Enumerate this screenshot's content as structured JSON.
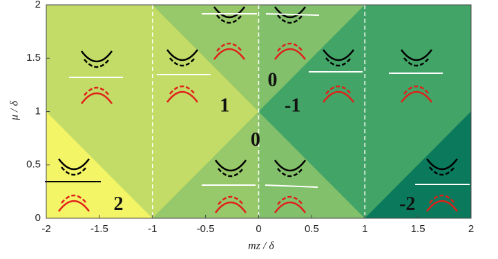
{
  "chart_data": {
    "type": "phase-diagram",
    "xlabel": "mz / δ",
    "ylabel": "μ / δ",
    "xlim": [
      -2,
      2
    ],
    "ylim": [
      0,
      2
    ],
    "xticks": [
      -2,
      -1.5,
      -1,
      -0.5,
      0,
      0.5,
      1,
      1.5,
      2
    ],
    "yticks": [
      0,
      0.5,
      1,
      1.5,
      2
    ],
    "vlines": [
      -1,
      0,
      1
    ],
    "regions": [
      {
        "color": "#f4f566",
        "points": [
          [
            -2,
            0
          ],
          [
            -1,
            0
          ],
          [
            -2,
            1
          ]
        ]
      },
      {
        "color": "#c3dc67",
        "points": [
          [
            -2,
            1
          ],
          [
            -1,
            0
          ],
          [
            0,
            1
          ],
          [
            -1,
            2
          ],
          [
            -2,
            2
          ]
        ]
      },
      {
        "color": "#97c869",
        "points": [
          [
            -1,
            2
          ],
          [
            0,
            1
          ],
          [
            0,
            2
          ]
        ]
      },
      {
        "color": "#97c869",
        "points": [
          [
            -1,
            0
          ],
          [
            0,
            0
          ],
          [
            0,
            1
          ]
        ]
      },
      {
        "color": "#82c06b",
        "points": [
          [
            0,
            2
          ],
          [
            0,
            1
          ],
          [
            1,
            2
          ]
        ]
      },
      {
        "color": "#82c06b",
        "points": [
          [
            0,
            0
          ],
          [
            1,
            0
          ],
          [
            0,
            1
          ]
        ]
      },
      {
        "color": "#42a466",
        "points": [
          [
            0,
            1
          ],
          [
            1,
            0
          ],
          [
            2,
            1
          ],
          [
            2,
            2
          ],
          [
            1,
            2
          ]
        ]
      },
      {
        "color": "#0b7a5c",
        "points": [
          [
            1,
            0
          ],
          [
            2,
            0
          ],
          [
            2,
            1
          ]
        ]
      }
    ],
    "annotations": [
      {
        "text": "2",
        "x": -1.32,
        "y": 0.12
      },
      {
        "text": "1",
        "x": -0.32,
        "y": 1.04
      },
      {
        "text": "0",
        "x": 0.13,
        "y": 1.28
      },
      {
        "text": "-1",
        "x": 0.32,
        "y": 1.04
      },
      {
        "text": "0",
        "x": -0.03,
        "y": 0.72
      },
      {
        "text": "-2",
        "x": 1.4,
        "y": 0.12
      }
    ]
  }
}
